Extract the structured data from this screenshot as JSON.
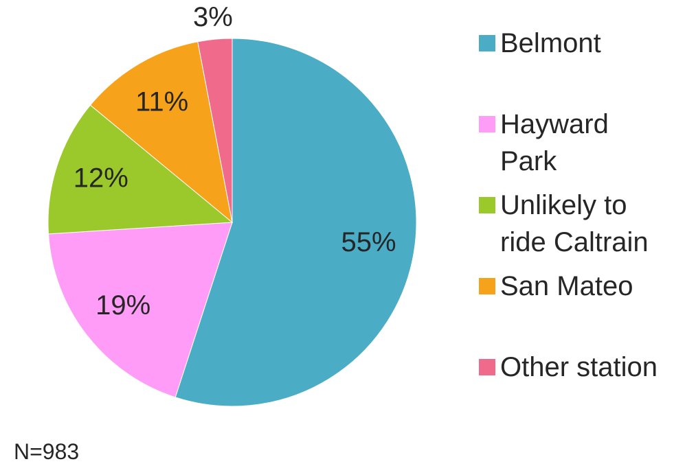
{
  "chart_data": {
    "type": "pie",
    "categories": [
      "Belmont",
      "Hayward Park",
      "Unlikely to ride Caltrain",
      "San Mateo",
      "Other station"
    ],
    "values": [
      55,
      19,
      12,
      11,
      3
    ],
    "value_labels": [
      "55%",
      "19%",
      "12%",
      "11%",
      "3%"
    ],
    "colors": [
      "#4bacc6",
      "#ff9cf7",
      "#9bc82a",
      "#f6a21b",
      "#f06a8c"
    ],
    "start_angle": 0,
    "direction": "clockwise",
    "legend": "right",
    "note": "N=983"
  }
}
